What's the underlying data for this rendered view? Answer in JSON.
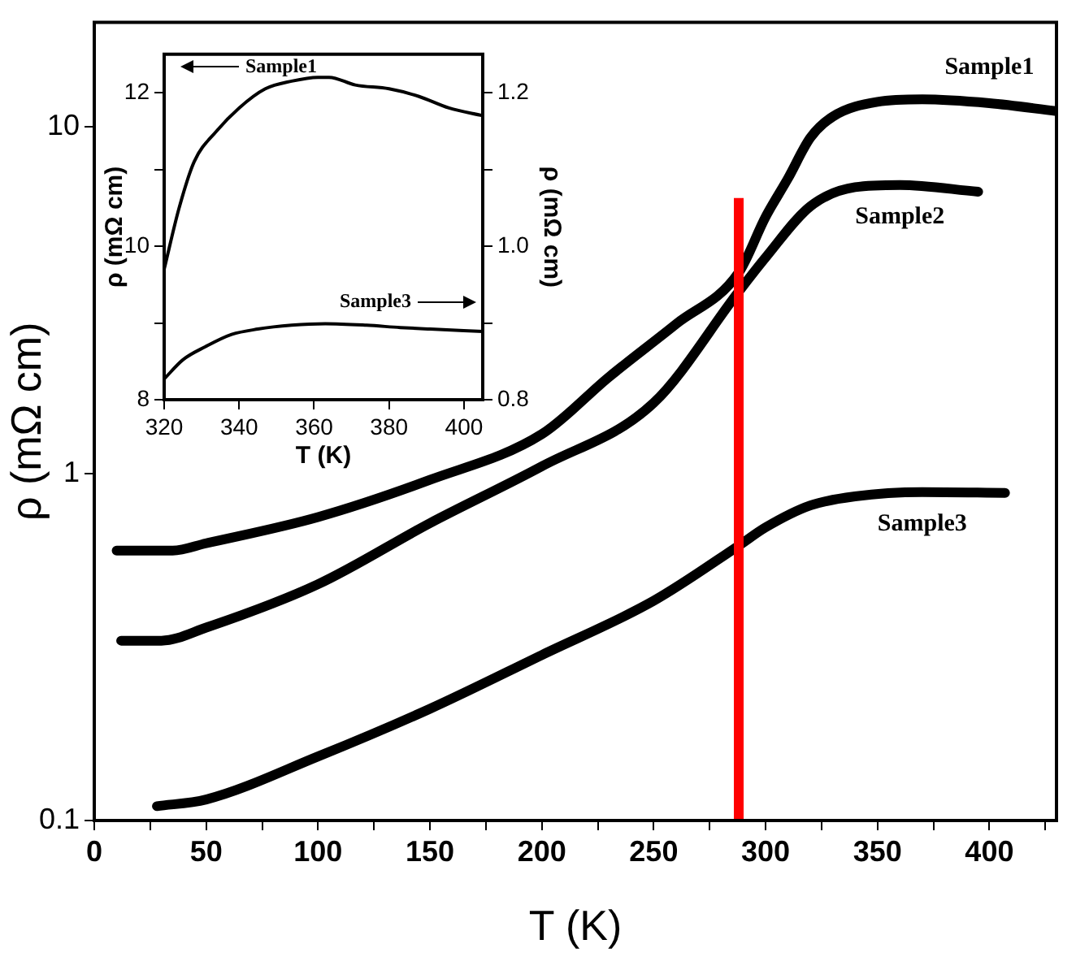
{
  "chart_data": [
    {
      "type": "line",
      "xlabel": "T (K)",
      "ylabel": "ρ (mΩ cm)",
      "log": "y",
      "marker": "none",
      "xlim": [
        0,
        430
      ],
      "xticks": [
        0,
        {
          "value": 25,
          "label": null
        },
        50,
        {
          "value": 75,
          "label": null
        },
        100,
        {
          "value": 125,
          "label": null
        },
        150,
        {
          "value": 175,
          "label": null
        },
        200,
        {
          "value": 225,
          "label": null
        },
        250,
        {
          "value": 275,
          "label": null
        },
        300,
        {
          "value": 325,
          "label": null
        },
        350,
        {
          "value": 375,
          "label": null
        },
        400,
        {
          "value": 425,
          "label": null
        }
      ],
      "ylim": [
        0.1,
        20
      ],
      "yticks": [
        0.1,
        1,
        10
      ],
      "ref_lines": [
        {
          "axis": "x",
          "value": 288,
          "color": "#ff0000"
        }
      ],
      "series": [
        {
          "name": "Sample1",
          "color": "#000000",
          "x": [
            10,
            35,
            50,
            100,
            150,
            200,
            230,
            260,
            288,
            300,
            310,
            320,
            330,
            350,
            370,
            400,
            430
          ],
          "values": [
            0.6,
            0.6,
            0.63,
            0.75,
            0.96,
            1.3,
            1.9,
            2.7,
            3.8,
            5.5,
            7.1,
            9.3,
            10.7,
            11.8,
            12,
            11.7,
            11.1
          ]
        },
        {
          "name": "Sample2",
          "color": "#000000",
          "x": [
            12,
            30,
            50,
            100,
            150,
            200,
            250,
            288,
            300,
            320,
            340,
            360,
            395
          ],
          "values": [
            0.33,
            0.33,
            0.36,
            0.48,
            0.72,
            1.05,
            1.6,
            3.35,
            4.2,
            5.9,
            6.7,
            6.8,
            6.5
          ]
        },
        {
          "name": "Sample3",
          "color": "#000000",
          "x": [
            28,
            50,
            100,
            150,
            200,
            250,
            288,
            300,
            320,
            340,
            370,
            407
          ],
          "values": [
            0.11,
            0.115,
            0.153,
            0.21,
            0.3,
            0.43,
            0.62,
            0.7,
            0.81,
            0.86,
            0.885,
            0.88
          ]
        }
      ]
    },
    {
      "type": "line",
      "xlabel": "T (K)",
      "ylabel": "ρ (mΩ cm)",
      "y2label": "ρ (mΩ cm)",
      "marker": "none",
      "xlim": [
        320,
        405
      ],
      "xticks": [
        320,
        340,
        360,
        380,
        400
      ],
      "ylim": [
        8,
        12.5
      ],
      "yticks": [
        8,
        {
          "value": 9,
          "label": null
        },
        10,
        {
          "value": 11,
          "label": null
        },
        12
      ],
      "y2lim": [
        0.8,
        1.25
      ],
      "y2ticks": [
        0.8,
        {
          "value": 0.9,
          "label": null
        },
        {
          "value": 1,
          "label": "1.0"
        },
        {
          "value": 1.1,
          "label": null
        },
        1.2
      ],
      "series": [
        {
          "name": "Sample1",
          "color": "#000000",
          "x": [
            320,
            324,
            328,
            334,
            340,
            347,
            354,
            361,
            364,
            371,
            380,
            388,
            396,
            405
          ],
          "values": [
            9.7,
            10.5,
            11.1,
            11.5,
            11.8,
            12.05,
            12.15,
            12.2,
            12.2,
            12.1,
            12.05,
            11.95,
            11.8,
            11.7
          ]
        },
        {
          "name": "Sample3",
          "color": "#000000",
          "axis": "y2",
          "x": [
            320,
            325,
            331,
            338,
            345,
            354,
            363,
            374,
            383,
            391,
            405
          ],
          "values": [
            0.827,
            0.852,
            0.869,
            0.885,
            0.892,
            0.897,
            0.899,
            0.897,
            0.894,
            0.892,
            0.889
          ]
        }
      ]
    }
  ]
}
